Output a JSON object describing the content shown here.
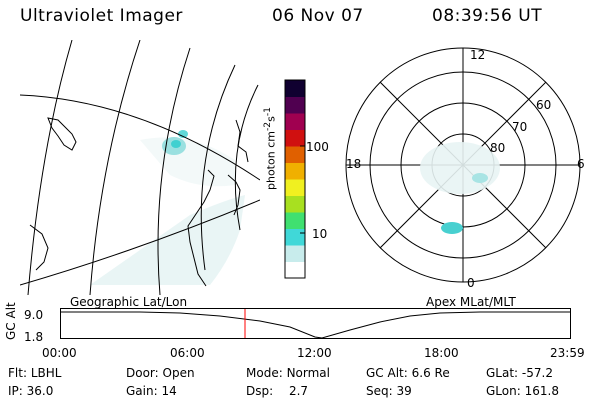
{
  "header": {
    "title": "Ultraviolet Imager",
    "date": "06 Nov 07",
    "time": "08:39:56 UT"
  },
  "colorbar": {
    "label": "photon cm^-2 s^-1",
    "ticks": [
      "100",
      "10"
    ],
    "colors": [
      "#ffffff",
      "#c8ecec",
      "#40d8d8",
      "#40e070",
      "#a8e020",
      "#f0f020",
      "#f0b000",
      "#e06000",
      "#d01010",
      "#a00050",
      "#500050",
      "#100030"
    ]
  },
  "left_panel": {
    "caption": "Geographic Lat/Lon"
  },
  "right_panel": {
    "caption": "Apex MLat/MLT",
    "mlt_labels": {
      "top": "12",
      "left": "18",
      "right": "6",
      "bottom": "0"
    },
    "lat_labels": [
      "60",
      "70",
      "80"
    ]
  },
  "altitude_plot": {
    "ylabel": "GC Alt",
    "yticks": [
      "9.0",
      "1.8"
    ],
    "xticks": [
      "00:00",
      "06:00",
      "12:00",
      "18:00",
      "23:59"
    ],
    "marker_time": "08:39:56",
    "line_color": "#000000",
    "marker_color": "#ff0000"
  },
  "status": {
    "row1": [
      {
        "key": "Flt:",
        "value": "LBHL"
      },
      {
        "key": "Door:",
        "value": "Open"
      },
      {
        "key": "Mode:",
        "value": "Normal"
      },
      {
        "key": "GC Alt:",
        "value": "6.6 Re"
      },
      {
        "key": "GLat:",
        "value": "-57.2"
      }
    ],
    "row2": [
      {
        "key": "IP:",
        "value": "36.0"
      },
      {
        "key": "Gain:",
        "value": "14"
      },
      {
        "key": "Dsp:",
        "value": "2.7"
      },
      {
        "key": "Seq:",
        "value": "39"
      },
      {
        "key": "GLon:",
        "value": "161.8"
      }
    ]
  }
}
